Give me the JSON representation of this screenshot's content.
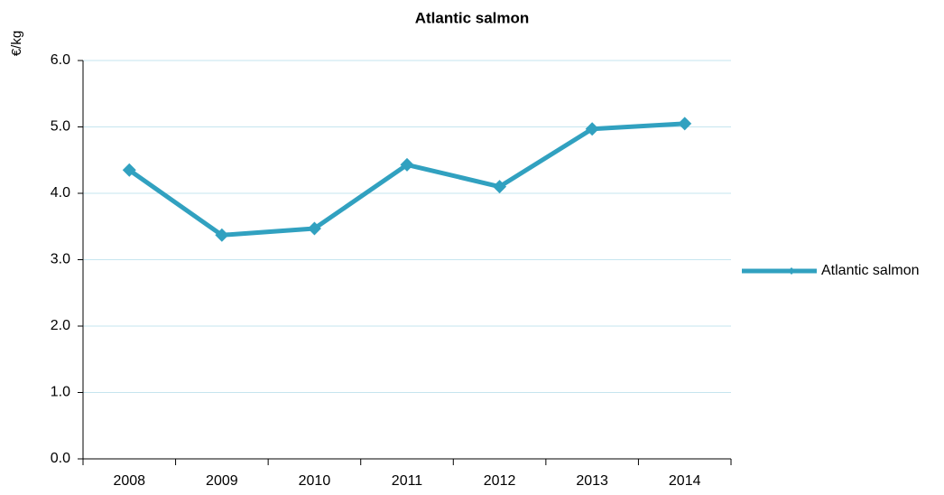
{
  "chart_data": {
    "type": "line",
    "title": "Atlantic salmon",
    "y_label": "€/kg",
    "categories": [
      "2008",
      "2009",
      "2010",
      "2011",
      "2012",
      "2013",
      "2014"
    ],
    "series": [
      {
        "name": "Atlantic salmon",
        "color": "#31a1c0",
        "values": [
          4.35,
          3.37,
          3.47,
          4.43,
          4.1,
          4.97,
          5.05
        ]
      }
    ],
    "ylim": [
      0,
      6
    ],
    "yticks": [
      {
        "value": 0,
        "label": "0.0"
      },
      {
        "value": 1,
        "label": "1.0"
      },
      {
        "value": 2,
        "label": "2.0"
      },
      {
        "value": 3,
        "label": "3.0"
      },
      {
        "value": 4,
        "label": "4.0"
      },
      {
        "value": 5,
        "label": "5.0"
      },
      {
        "value": 6,
        "label": "6.0"
      }
    ],
    "grid": true,
    "legend": "right"
  }
}
